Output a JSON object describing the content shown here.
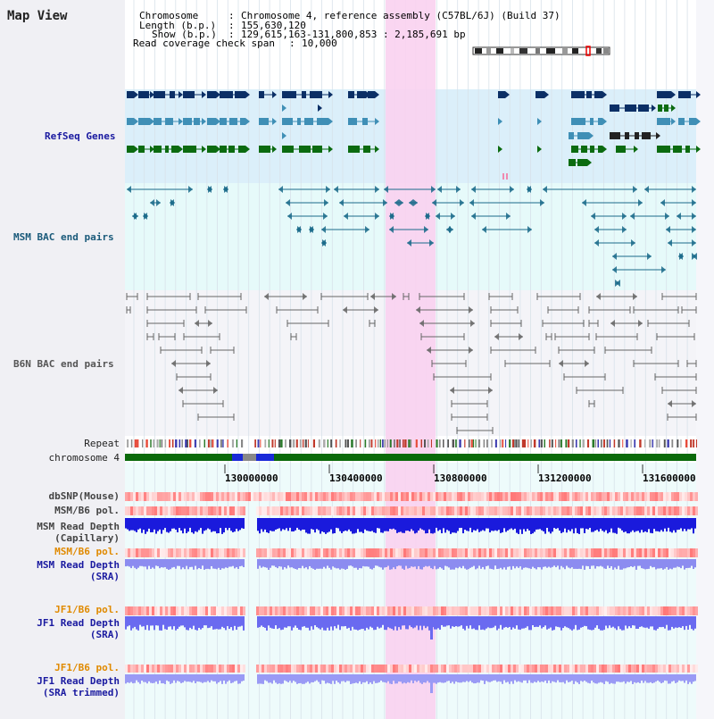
{
  "title": "Map View",
  "header": {
    "chromosome_label": "Chromosome",
    "chromosome_value": "Chromosome 4, reference assembly (C57BL/6J) (Build 37)",
    "length_label": "Length (b.p.)",
    "length_value": "155,630,120",
    "show_label": "Show (b.p.)",
    "show_value": "129,615,163-131,800,853 : 2,185,691 bp",
    "coverage_label": "Read coverage check span",
    "coverage_value": "10,000"
  },
  "tracks": {
    "refseq": "RefSeq Genes",
    "msm_bac": "MSM BAC end pairs",
    "b6n_bac": "B6N BAC end pairs",
    "repeat": "Repeat",
    "chromosome": "chromosome 4",
    "dbsnp": "dbSNP(Mouse)",
    "msm_b6_pol_1": "MSM/B6 pol.",
    "msm_read_depth_cap_1": "MSM Read Depth",
    "msm_read_depth_cap_2": "(Capillary)",
    "msm_b6_pol_2": "MSM/B6 pol.",
    "msm_read_depth_sra_1": "MSM Read Depth",
    "msm_read_depth_sra_2": "(SRA)",
    "jf1_b6_pol_1": "JF1/B6 pol.",
    "jf1_read_depth_sra_1": "JF1 Read Depth",
    "jf1_read_depth_sra_2": "(SRA)",
    "jf1_b6_pol_2": "JF1/B6 pol.",
    "jf1_read_depth_trim_1": "JF1 Read Depth",
    "jf1_read_depth_trim_2": "(SRA trimmed)"
  },
  "axis": {
    "ticks": [
      "130000000",
      "130400000",
      "130800000",
      "131200000",
      "131600000"
    ]
  },
  "colors": {
    "refseq_bg": "#dbeffa",
    "msm_bg": "#e6fafa",
    "b6n_bg": "#f4f4f8",
    "highlight": "#f9d2ef",
    "navy": "#0b2f66",
    "steel": "#3f8fb6",
    "green": "#0b6b10",
    "teal": "#1a6a8a",
    "gray": "#666666",
    "label_navy": "#1a1aa0",
    "label_orange": "#e08a00",
    "label_teal": "#1a5a7a",
    "label_gray": "#555555"
  }
}
